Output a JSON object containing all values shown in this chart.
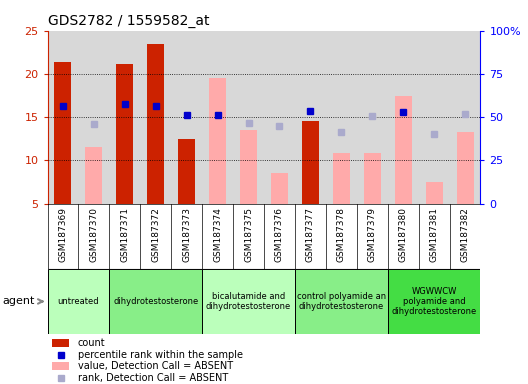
{
  "title": "GDS2782 / 1559582_at",
  "samples": [
    "GSM187369",
    "GSM187370",
    "GSM187371",
    "GSM187372",
    "GSM187373",
    "GSM187374",
    "GSM187375",
    "GSM187376",
    "GSM187377",
    "GSM187378",
    "GSM187379",
    "GSM187380",
    "GSM187381",
    "GSM187382"
  ],
  "count_values": [
    21.4,
    null,
    21.1,
    23.5,
    12.5,
    null,
    null,
    null,
    14.5,
    null,
    null,
    null,
    null,
    null
  ],
  "absent_value": [
    null,
    11.5,
    null,
    null,
    null,
    19.5,
    13.5,
    8.5,
    null,
    10.9,
    10.8,
    17.5,
    7.5,
    13.3
  ],
  "rank_present": [
    16.3,
    null,
    16.5,
    16.3,
    15.2,
    15.2,
    null,
    null,
    15.7,
    null,
    null,
    15.6,
    null,
    null
  ],
  "rank_absent": [
    null,
    14.2,
    null,
    null,
    null,
    null,
    14.3,
    14.0,
    null,
    13.3,
    15.1,
    null,
    13.0,
    15.4
  ],
  "agents": [
    {
      "label": "untreated",
      "start": 0,
      "end": 2,
      "color": "#bbffbb"
    },
    {
      "label": "dihydrotestosterone",
      "start": 2,
      "end": 5,
      "color": "#88ee88"
    },
    {
      "label": "bicalutamide and\ndihydrotestosterone",
      "start": 5,
      "end": 8,
      "color": "#bbffbb"
    },
    {
      "label": "control polyamide an\ndihydrotestosterone",
      "start": 8,
      "end": 11,
      "color": "#88ee88"
    },
    {
      "label": "WGWWCW\npolyamide and\ndihydrotestosterone",
      "start": 11,
      "end": 14,
      "color": "#44dd44"
    }
  ],
  "ylim_left": [
    5,
    25
  ],
  "ylim_right": [
    0,
    100
  ],
  "count_color": "#cc2200",
  "absent_bar_color": "#ffaaaa",
  "rank_present_color": "#0000cc",
  "rank_absent_color": "#aaaacc",
  "bg_color": "#d8d8d8",
  "legend": [
    {
      "type": "patch",
      "color": "#cc2200",
      "label": "count"
    },
    {
      "type": "marker",
      "color": "#0000cc",
      "label": "percentile rank within the sample"
    },
    {
      "type": "patch",
      "color": "#ffaaaa",
      "label": "value, Detection Call = ABSENT"
    },
    {
      "type": "marker",
      "color": "#aaaacc",
      "label": "rank, Detection Call = ABSENT"
    }
  ]
}
